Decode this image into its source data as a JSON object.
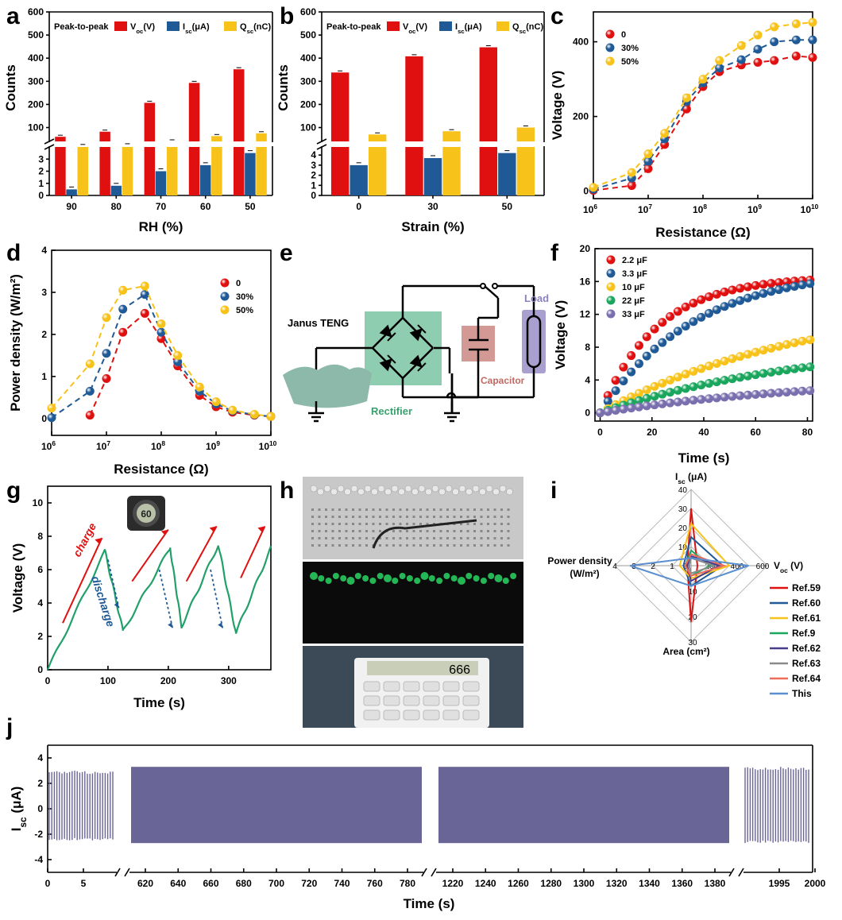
{
  "colors": {
    "red": "#e01010",
    "blue": "#1f5a96",
    "yellow": "#f7c21a",
    "green": "#1aa65c",
    "purple": "#7a6fae",
    "trace": "#6a6597",
    "teal": "#21a06a"
  },
  "chart_data": [
    {
      "id": "a",
      "type": "bar",
      "panel": "a",
      "legend_title": "Peak-to-peak",
      "legend": [
        "V",
        "I",
        "Q"
      ],
      "legend_sub": [
        "oc",
        "sc",
        "sc"
      ],
      "legend_unit": [
        "(V)",
        "(μA)",
        "(nC)"
      ],
      "categories": [
        "90",
        "80",
        "70",
        "60",
        "50"
      ],
      "xlabel": "RH (%)",
      "ylabel": "Counts",
      "series": [
        {
          "name": "Voc(V)",
          "values": [
            60,
            82,
            207,
            293,
            352
          ]
        },
        {
          "name": "Isc(μA)",
          "values": [
            0.5,
            0.8,
            2.0,
            2.5,
            3.5
          ]
        },
        {
          "name": "Qsc(nC)",
          "values": [
            20,
            23,
            40,
            63,
            75
          ]
        }
      ],
      "upper_ticks": [
        "100",
        "200",
        "300",
        "400",
        "500",
        "600"
      ],
      "lower_ticks": [
        "0",
        "1",
        "2",
        "3"
      ]
    },
    {
      "id": "b",
      "type": "bar",
      "panel": "b",
      "legend_title": "Peak-to-peak",
      "legend": [
        "V",
        "I",
        "Q"
      ],
      "legend_sub": [
        "oc",
        "sc",
        "sc"
      ],
      "legend_unit": [
        "(V)",
        "(μA)",
        "(nC)"
      ],
      "categories": [
        "0",
        "30",
        "50"
      ],
      "xlabel": "Strain (%)",
      "ylabel": "Counts",
      "series": [
        {
          "name": "Voc(V)",
          "values": [
            338,
            408,
            447
          ]
        },
        {
          "name": "Isc(μA)",
          "values": [
            3.0,
            3.7,
            4.2
          ]
        },
        {
          "name": "Qsc(nC)",
          "values": [
            70,
            84,
            100
          ]
        }
      ],
      "upper_ticks": [
        "100",
        "200",
        "300",
        "400",
        "500",
        "600"
      ],
      "lower_ticks": [
        "0",
        "1",
        "2",
        "3",
        "4"
      ]
    },
    {
      "id": "c",
      "type": "scatter",
      "panel": "c",
      "xlabel": "Resistance (Ω)",
      "ylabel": "Voltage (V)",
      "xscale": "log",
      "xlim": [
        6,
        10
      ],
      "ylim": [
        -20,
        480
      ],
      "yticks": [
        "0",
        "200",
        "400"
      ],
      "xtick_exp": [
        "6",
        "7",
        "8",
        "9",
        "10"
      ],
      "series": [
        {
          "name": "0",
          "x": [
            6,
            6.7,
            7,
            7.3,
            7.7,
            8,
            8.3,
            8.7,
            9,
            9.3,
            9.7,
            10
          ],
          "y": [
            2,
            15,
            60,
            125,
            220,
            280,
            320,
            338,
            345,
            350,
            362,
            358
          ]
        },
        {
          "name": "30%",
          "x": [
            6,
            6.7,
            7,
            7.3,
            7.7,
            8,
            8.3,
            8.7,
            9,
            9.3,
            9.7,
            10
          ],
          "y": [
            5,
            35,
            80,
            140,
            240,
            290,
            330,
            352,
            380,
            400,
            405,
            405
          ]
        },
        {
          "name": "50%",
          "x": [
            6,
            6.7,
            7,
            7.3,
            7.7,
            8,
            8.3,
            8.7,
            9,
            9.3,
            9.7,
            10
          ],
          "y": [
            10,
            50,
            100,
            155,
            250,
            300,
            350,
            390,
            418,
            440,
            448,
            452
          ]
        }
      ]
    },
    {
      "id": "d",
      "type": "scatter",
      "panel": "d",
      "xlabel": "Resistance (Ω)",
      "ylabel": "Power density (W/m²)",
      "xscale": "log",
      "xlim": [
        6,
        10
      ],
      "ylim": [
        -0.4,
        4
      ],
      "yticks": [
        "0",
        "1",
        "2",
        "3",
        "4"
      ],
      "xtick_exp": [
        "6",
        "7",
        "8",
        "9",
        "10"
      ],
      "series": [
        {
          "name": "0",
          "x": [
            6.7,
            7,
            7.3,
            7.7,
            8,
            8.3,
            8.7,
            9,
            9.3,
            9.7,
            10
          ],
          "y": [
            0.08,
            0.95,
            2.05,
            2.5,
            1.9,
            1.25,
            0.55,
            0.28,
            0.15,
            0.08,
            0.05
          ]
        },
        {
          "name": "30%",
          "x": [
            6,
            6.7,
            7,
            7.3,
            7.7,
            8,
            8.3,
            8.7,
            9,
            9.3,
            9.7,
            10
          ],
          "y": [
            0.02,
            0.65,
            1.55,
            2.6,
            2.95,
            2.05,
            1.35,
            0.65,
            0.35,
            0.18,
            0.09,
            0.05
          ]
        },
        {
          "name": "50%",
          "x": [
            6,
            6.7,
            7,
            7.3,
            7.7,
            8,
            8.3,
            8.7,
            9,
            9.3,
            9.7,
            10
          ],
          "y": [
            0.25,
            1.3,
            2.4,
            3.05,
            3.15,
            2.25,
            1.5,
            0.75,
            0.4,
            0.2,
            0.1,
            0.05
          ]
        }
      ]
    },
    {
      "id": "f",
      "type": "scatter",
      "panel": "f",
      "xlabel": "Time (s)",
      "ylabel": "Voltage (V)",
      "xlim": [
        -2,
        82
      ],
      "ylim": [
        -1,
        20
      ],
      "yticks": [
        "0",
        "4",
        "8",
        "12",
        "16",
        "20"
      ],
      "xticks": [
        "0",
        "20",
        "40",
        "60",
        "80"
      ],
      "series": [
        {
          "name": "2.2 μF",
          "k": 16.6,
          "tau": 22
        },
        {
          "name": "3.3 μF",
          "k": 17.6,
          "tau": 36
        },
        {
          "name": "10 μF",
          "k": 8.9,
          "tau": 82
        },
        {
          "name": "22 μF",
          "k": 5.6,
          "tau": 82
        },
        {
          "name": "33 μF",
          "k": 2.7,
          "tau": 82
        }
      ]
    },
    {
      "id": "g",
      "type": "line",
      "panel": "g",
      "xlabel": "Time (s)",
      "ylabel": "Voltage (V)",
      "xlim": [
        0,
        370
      ],
      "ylim": [
        0,
        11
      ],
      "yticks": [
        "0",
        "2",
        "4",
        "6",
        "8",
        "10"
      ],
      "xticks": [
        "0",
        "100",
        "200",
        "300"
      ],
      "x": [
        0,
        95,
        125,
        203,
        222,
        283,
        312,
        370
      ],
      "y": [
        0,
        7.1,
        2.3,
        7.3,
        2.6,
        7.5,
        2.2,
        7.3
      ]
    },
    {
      "id": "i",
      "type": "radar",
      "panel": "i",
      "axes": [
        "Isc (μA)",
        "Voc (V)",
        "Area (cm²)",
        "Power density (W/m²)"
      ],
      "series": [
        {
          "name": "Ref.59",
          "values": [
            30,
            50,
            22,
            0.2
          ]
        },
        {
          "name": "Ref.60",
          "values": [
            15,
            250,
            8,
            0.4
          ]
        },
        {
          "name": "Ref.61",
          "values": [
            22,
            300,
            5,
            0.6
          ]
        },
        {
          "name": "Ref.9",
          "values": [
            8,
            150,
            4,
            0.3
          ]
        },
        {
          "name": "Ref.62",
          "values": [
            5,
            220,
            6,
            0.2
          ]
        },
        {
          "name": "Ref.63",
          "values": [
            4,
            180,
            3,
            0.1
          ]
        },
        {
          "name": "Ref.64",
          "values": [
            6,
            260,
            4,
            0.3
          ]
        },
        {
          "name": "This",
          "values": [
            4,
            452,
            8,
            3.2
          ]
        }
      ]
    },
    {
      "id": "j",
      "type": "line",
      "panel": "j",
      "xlabel": "Time (s)",
      "ylabel": "Isc (μA)",
      "ylim": [
        -5,
        5
      ],
      "yticks": [
        "-4",
        "-2",
        "0",
        "2",
        "4"
      ],
      "segments": [
        {
          "ticks": [
            "0",
            "5"
          ],
          "amp_hi": 3.0,
          "amp_lo": -2.5
        },
        {
          "ticks": [
            "620",
            "640",
            "660",
            "680",
            "700",
            "720",
            "740",
            "760",
            "780"
          ],
          "amp_hi": 3.3,
          "amp_lo": -2.7
        },
        {
          "ticks": [
            "1220",
            "1240",
            "1260",
            "1280",
            "1300",
            "1320",
            "1340",
            "1360",
            "1380"
          ],
          "amp_hi": 3.3,
          "amp_lo": -2.7
        },
        {
          "ticks": [
            "1995",
            "2000"
          ],
          "amp_hi": 3.3,
          "amp_lo": -2.7
        }
      ]
    }
  ],
  "letters": [
    "a",
    "b",
    "c",
    "d",
    "e",
    "f",
    "g",
    "h",
    "i",
    "j"
  ],
  "circuit": {
    "janus": "Janus TENG",
    "rectifier": "Rectifier",
    "capacitor": "Capacitor",
    "load": "Load"
  },
  "g_labels": {
    "charge": "charge",
    "discharge": "discharge",
    "meter": "60"
  },
  "calc_display": "666",
  "radar_labels": {
    "top": "I",
    "top_sub": "sc",
    "top_unit": "(μA)",
    "right": "V",
    "right_sub": "oc",
    "right_unit": "(V)",
    "bottom": "Area (cm²)",
    "left1": "Power density",
    "left2": "(W/m²)"
  },
  "j_labels": {
    "y": "I",
    "y_sub": "sc",
    "y_unit": "(μA)",
    "x": "Time (s)"
  }
}
